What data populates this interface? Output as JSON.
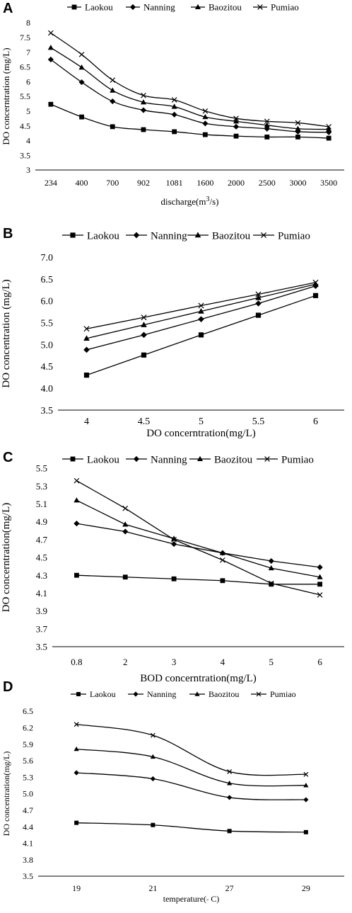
{
  "chart_data": [
    {
      "panel": "A",
      "type": "line",
      "categories": [
        "234",
        "400",
        "700",
        "902",
        "1081",
        "1600",
        "2000",
        "2500",
        "3000",
        "3500"
      ],
      "series": [
        {
          "name": "Laokou",
          "values": [
            5.23,
            4.8,
            4.47,
            4.37,
            4.3,
            4.2,
            4.15,
            4.12,
            4.12,
            4.08
          ]
        },
        {
          "name": "Nanning",
          "values": [
            6.75,
            5.98,
            5.33,
            5.03,
            4.88,
            4.58,
            4.47,
            4.4,
            4.3,
            4.28
          ]
        },
        {
          "name": "Baozitou",
          "values": [
            7.15,
            6.48,
            5.7,
            5.3,
            5.15,
            4.8,
            4.65,
            4.52,
            4.4,
            4.38
          ]
        },
        {
          "name": "Pumiao",
          "values": [
            7.65,
            6.92,
            6.05,
            5.53,
            5.38,
            5.0,
            4.75,
            4.65,
            4.6,
            4.47
          ]
        }
      ],
      "xlabel_main": "discharge(m",
      "xlabel_sup": "3",
      "xlabel_end": "/s)",
      "ylabel": "DO concerntration (mg/L)",
      "yticks": [
        "3",
        "3.5",
        "4",
        "4.5",
        "5",
        "5.5",
        "6",
        "6.5",
        "7",
        "7.5",
        "8"
      ],
      "ylim": [
        3,
        8
      ],
      "smooth": true,
      "grid": false,
      "legend": "top"
    },
    {
      "panel": "B",
      "type": "line",
      "categories": [
        "4",
        "4.5",
        "5",
        "5.5",
        "6"
      ],
      "series": [
        {
          "name": "Laokou",
          "values": [
            4.3,
            4.76,
            5.22,
            5.67,
            6.12
          ]
        },
        {
          "name": "Nanning",
          "values": [
            4.88,
            5.22,
            5.58,
            5.94,
            6.34
          ]
        },
        {
          "name": "Baozitou",
          "values": [
            5.14,
            5.45,
            5.76,
            6.07,
            6.38
          ]
        },
        {
          "name": "Pumiao",
          "values": [
            5.36,
            5.62,
            5.89,
            6.15,
            6.42
          ]
        }
      ],
      "xlabel_main": "DO concerntration(mg/L)",
      "ylabel": "DO concentration (mg/L)",
      "yticks": [
        "3.5",
        "4.0",
        "4.5",
        "5.0",
        "5.5",
        "6.0",
        "6.5",
        "7.0"
      ],
      "ylim": [
        3.5,
        7.0
      ],
      "smooth": false,
      "grid": false,
      "legend": "top"
    },
    {
      "panel": "C",
      "type": "line",
      "categories": [
        "0.8",
        "2",
        "3",
        "4",
        "5",
        "6"
      ],
      "series": [
        {
          "name": "Laokou",
          "values": [
            4.3,
            4.28,
            4.26,
            4.24,
            4.2,
            4.2
          ]
        },
        {
          "name": "Nanning",
          "values": [
            4.88,
            4.79,
            4.65,
            4.55,
            4.46,
            4.39
          ]
        },
        {
          "name": "Baozitou",
          "values": [
            5.14,
            4.87,
            4.71,
            4.55,
            4.38,
            4.28
          ]
        },
        {
          "name": "Pumiao",
          "values": [
            5.36,
            5.05,
            4.7,
            4.47,
            4.21,
            4.08
          ]
        }
      ],
      "xlabel_main": "BOD concerntration(mg/L)",
      "ylabel": "DO concerntration(mg/L)",
      "yticks": [
        "3.5",
        "3.7",
        "3.9",
        "4.1",
        "4.3",
        "4.5",
        "4.7",
        "4.9",
        "5.1",
        "5.3",
        "5.5"
      ],
      "ylim": [
        3.5,
        5.5
      ],
      "smooth": false,
      "grid": false,
      "legend": "top"
    },
    {
      "panel": "D",
      "type": "line",
      "categories": [
        "19",
        "21",
        "27",
        "29"
      ],
      "series": [
        {
          "name": "Laokou",
          "values": [
            4.47,
            4.43,
            4.32,
            4.3
          ]
        },
        {
          "name": "Nanning",
          "values": [
            5.38,
            5.27,
            4.93,
            4.89
          ]
        },
        {
          "name": "Baozitou",
          "values": [
            5.81,
            5.67,
            5.19,
            5.15
          ]
        },
        {
          "name": "Pumiao",
          "values": [
            6.26,
            6.06,
            5.4,
            5.35
          ]
        }
      ],
      "xlabel_main": "temperature(",
      "xlabel_deg": "◦",
      "xlabel_end": " C)",
      "ylabel": "DO concentration(mg/L)",
      "yticks": [
        "3.5",
        "3.8",
        "4.1",
        "4.4",
        "4.7",
        "5.0",
        "5.3",
        "5.6",
        "5.9",
        "6.2",
        "6.5"
      ],
      "ylim": [
        3.5,
        6.5
      ],
      "smooth": true,
      "grid": false,
      "legend": "top"
    }
  ],
  "markers": {
    "Laokou": "square",
    "Nanning": "diamond",
    "Baozitou": "triangle",
    "Pumiao": "cross"
  },
  "line_color": "#000000"
}
